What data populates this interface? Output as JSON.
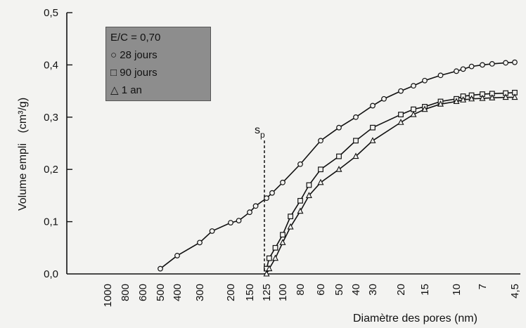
{
  "chart_data": {
    "type": "line",
    "xlabel": "Diamètre des pores (nm)",
    "ylabel_text": "Volume empli",
    "ylabel_unit": "(cm³/g)",
    "x_tick_labels": [
      "1000",
      "800",
      "600",
      "500",
      "400",
      "300",
      "200",
      "150",
      "125",
      "100",
      "80",
      "60",
      "50",
      "40",
      "30",
      "20",
      "15",
      "10",
      "7",
      "4,5"
    ],
    "y_ticks": [
      "0,0",
      "0,1",
      "0,2",
      "0,3",
      "0,4",
      "0,5"
    ],
    "ylim": [
      0,
      0.5
    ],
    "x_scale": "reciprocal (decreasing diameter left to right)",
    "annotation": {
      "label": "s",
      "subscript": "p",
      "x": 125
    },
    "legend": [
      "E/C = 0,70",
      "○ 28 jours",
      "□ 90 jours",
      "△ 1 an"
    ],
    "series": [
      {
        "marker": "circle",
        "x": [
          500,
          400,
          300,
          250,
          200,
          175,
          150,
          140,
          125,
          115,
          100,
          80,
          60,
          50,
          40,
          30,
          25,
          20,
          17,
          15,
          12,
          10,
          9,
          8,
          7,
          6,
          5,
          4.5
        ],
        "y": [
          0.01,
          0.035,
          0.06,
          0.082,
          0.098,
          0.102,
          0.118,
          0.13,
          0.145,
          0.155,
          0.175,
          0.21,
          0.255,
          0.28,
          0.3,
          0.322,
          0.335,
          0.35,
          0.36,
          0.37,
          0.38,
          0.388,
          0.392,
          0.397,
          0.4,
          0.402,
          0.404,
          0.405
        ]
      },
      {
        "marker": "square",
        "x": [
          125,
          120,
          110,
          100,
          90,
          80,
          70,
          60,
          50,
          40,
          30,
          20,
          17,
          15,
          12,
          10,
          9,
          8,
          7,
          6,
          5,
          4.5
        ],
        "y": [
          0.01,
          0.03,
          0.05,
          0.075,
          0.11,
          0.14,
          0.17,
          0.2,
          0.225,
          0.255,
          0.28,
          0.305,
          0.315,
          0.32,
          0.33,
          0.335,
          0.34,
          0.342,
          0.344,
          0.345,
          0.346,
          0.347
        ]
      },
      {
        "marker": "triangle",
        "x": [
          125,
          120,
          110,
          100,
          90,
          80,
          70,
          60,
          50,
          40,
          30,
          20,
          17,
          15,
          12,
          10,
          9,
          8,
          7,
          6,
          5,
          4.5
        ],
        "y": [
          0.0,
          0.01,
          0.03,
          0.06,
          0.09,
          0.12,
          0.15,
          0.175,
          0.2,
          0.225,
          0.255,
          0.29,
          0.305,
          0.315,
          0.325,
          0.33,
          0.333,
          0.335,
          0.336,
          0.337,
          0.338,
          0.338
        ]
      }
    ]
  }
}
